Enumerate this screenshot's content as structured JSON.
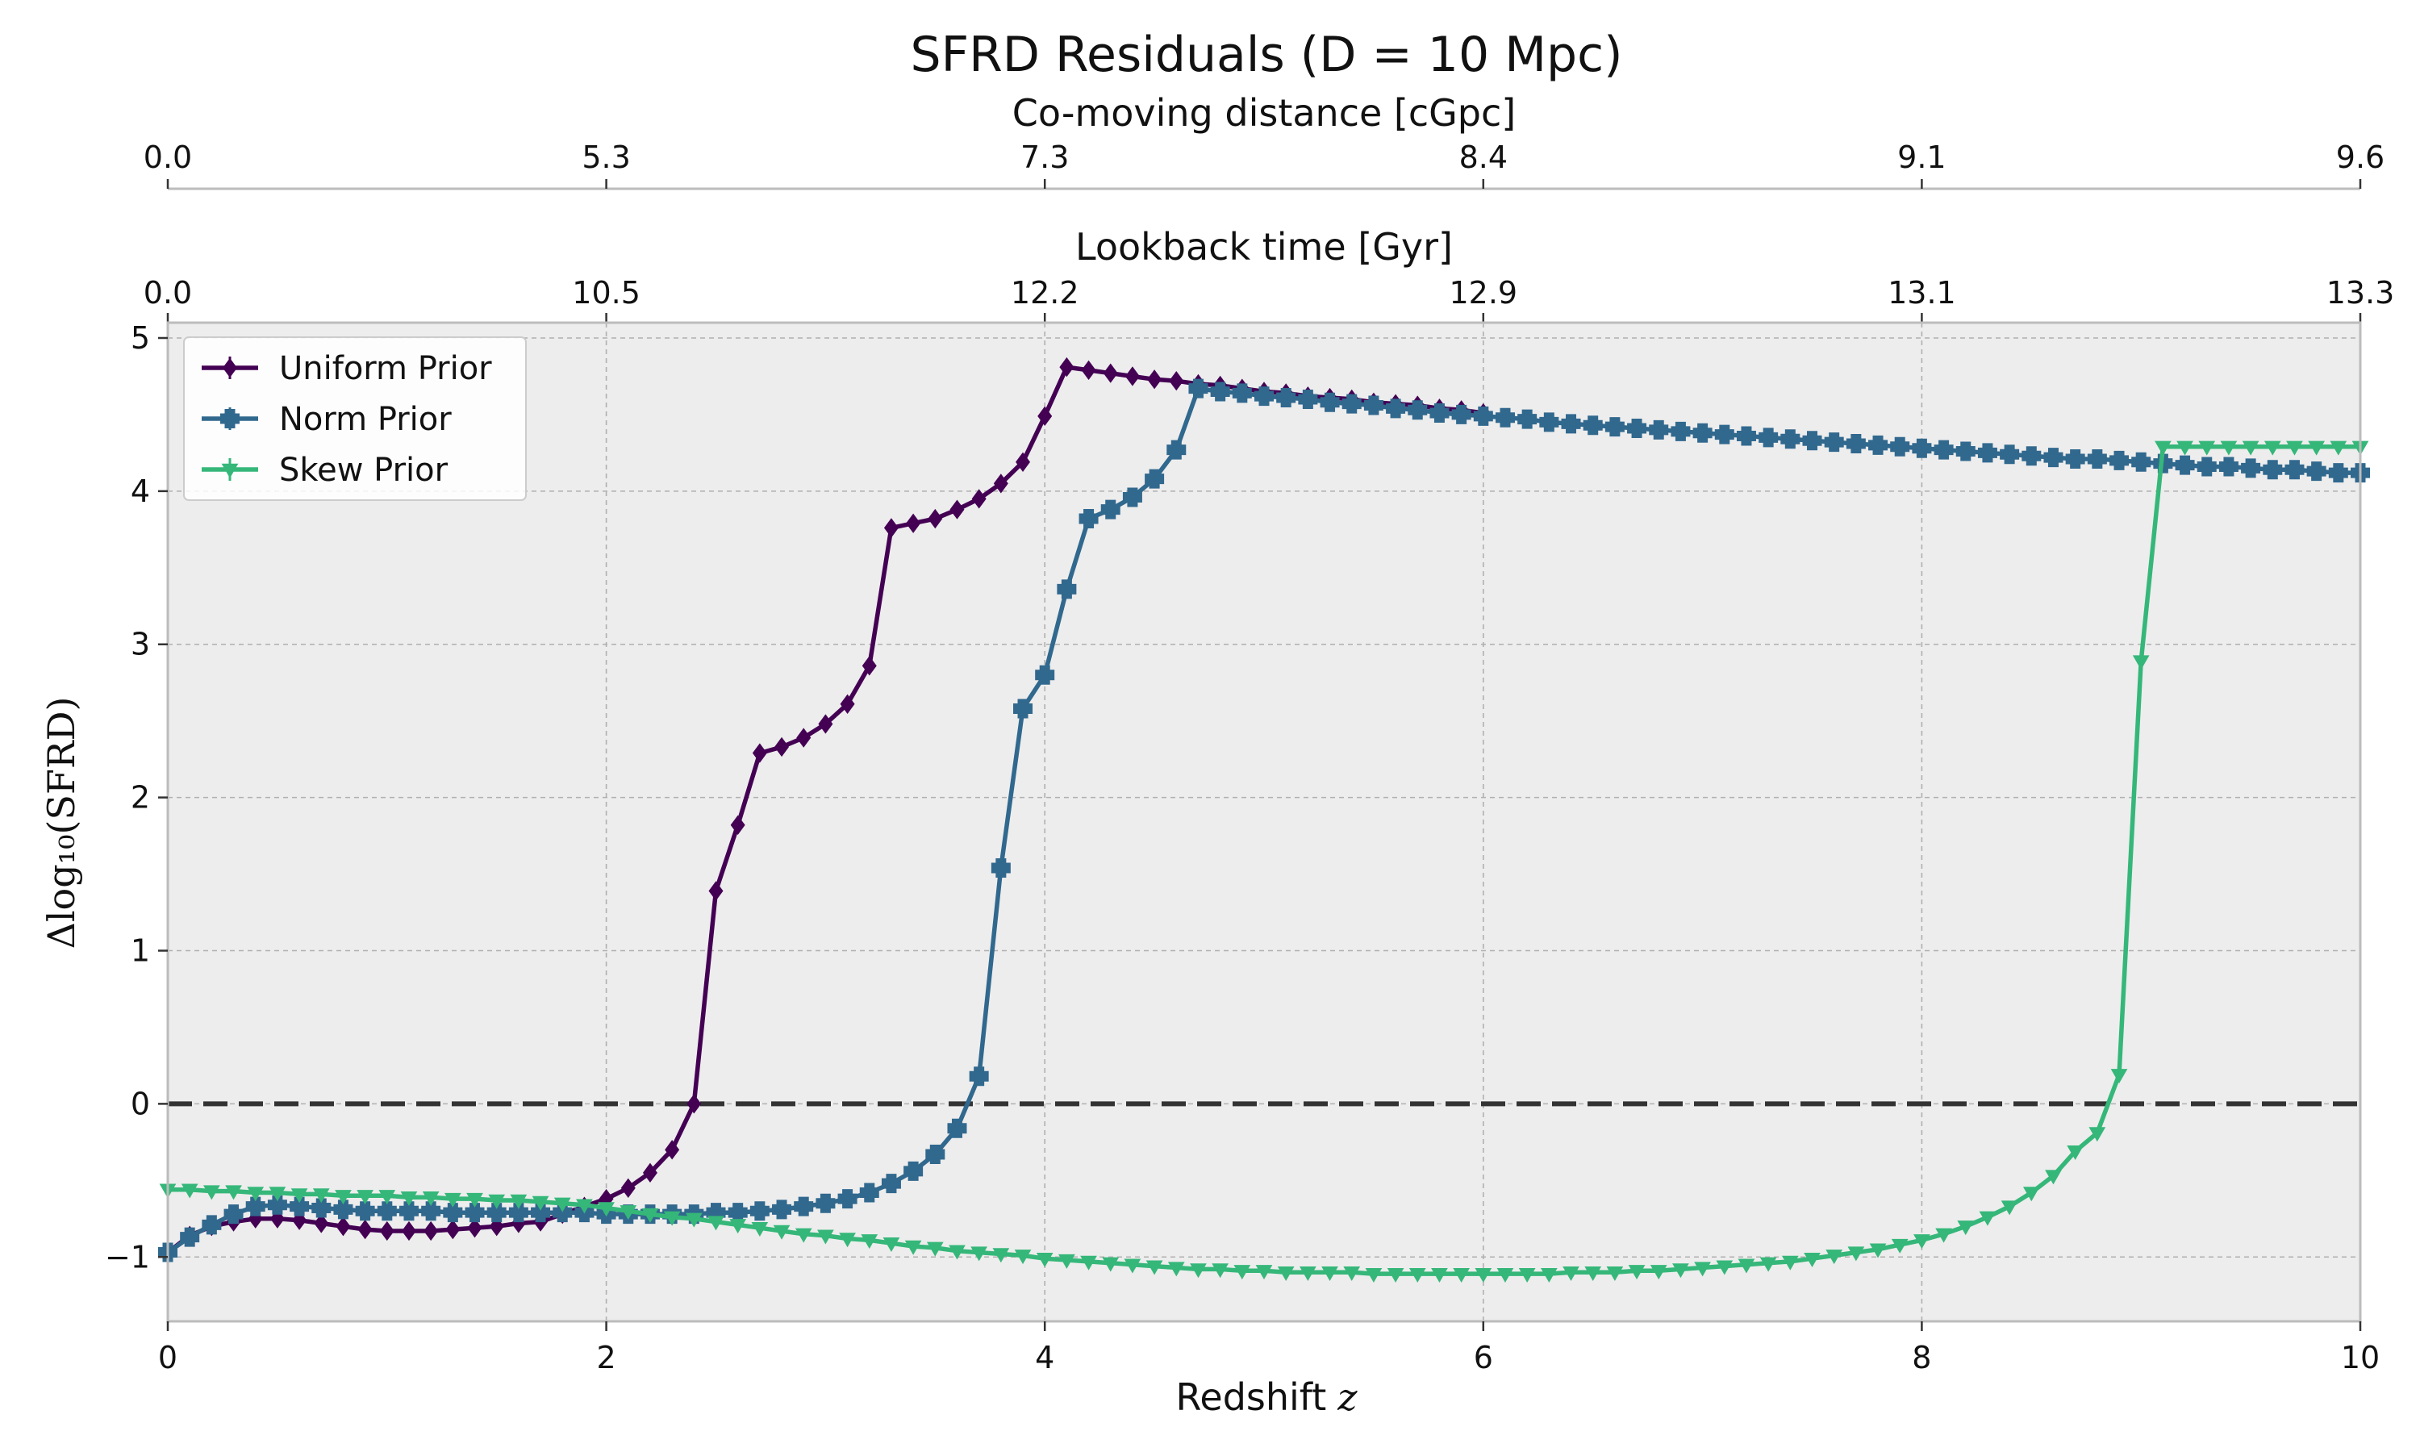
{
  "chart_data": {
    "type": "line",
    "title": "SFRD Residuals (D = 10 Mpc)",
    "xlabel": "Redshift",
    "xlabel_symbol": "z",
    "ylabel": "Δlog₁₀(SFRD)",
    "xlim": [
      0,
      10
    ],
    "ylim": [
      -1.42,
      5.1
    ],
    "x_ticks": [
      0,
      2,
      4,
      6,
      8,
      10
    ],
    "y_ticks": [
      -1,
      0,
      1,
      2,
      3,
      4,
      5
    ],
    "x_tick_labels": [
      "0",
      "2",
      "4",
      "6",
      "8",
      "10"
    ],
    "y_tick_labels": [
      "−1",
      "0",
      "1",
      "2",
      "3",
      "4",
      "5"
    ],
    "grid": true,
    "legend_position": "top-left",
    "reference_line": {
      "y": 0,
      "style": "dashed",
      "color": "#333333"
    },
    "top_axes": [
      {
        "label": "Lookback time [Gyr]",
        "ticks": [
          0,
          2,
          4,
          6,
          8,
          10
        ],
        "tick_labels": [
          "0.0",
          "10.5",
          "12.2",
          "12.9",
          "13.1",
          "13.3"
        ]
      },
      {
        "label": "Co-moving distance [cGpc]",
        "ticks": [
          0,
          2,
          4,
          6,
          8,
          10
        ],
        "tick_labels": [
          "0.0",
          "5.3",
          "7.3",
          "8.4",
          "9.1",
          "9.6"
        ]
      }
    ],
    "series": [
      {
        "name": "Uniform Prior",
        "color": "#440154",
        "marker": "diamond",
        "x": [
          0.0,
          0.1,
          0.2,
          0.3,
          0.4,
          0.5,
          0.6,
          0.7,
          0.8,
          0.9,
          1.0,
          1.1,
          1.2,
          1.3,
          1.4,
          1.5,
          1.6,
          1.7,
          1.8,
          1.9,
          2.0,
          2.1,
          2.2,
          2.3,
          2.4,
          2.5,
          2.6,
          2.7,
          2.8,
          2.9,
          3.0,
          3.1,
          3.2,
          3.3,
          3.4,
          3.5,
          3.6,
          3.7,
          3.8,
          3.9,
          4.0,
          4.1,
          4.2,
          4.3,
          4.4,
          4.5,
          4.6,
          4.7,
          4.8,
          4.9,
          5.0,
          5.1,
          5.2,
          5.3,
          5.4,
          5.5,
          5.6,
          5.7,
          5.8,
          5.9,
          6.0
        ],
        "values": [
          -0.97,
          -0.86,
          -0.8,
          -0.77,
          -0.75,
          -0.75,
          -0.76,
          -0.78,
          -0.8,
          -0.82,
          -0.83,
          -0.83,
          -0.83,
          -0.82,
          -0.81,
          -0.8,
          -0.78,
          -0.77,
          -0.72,
          -0.67,
          -0.62,
          -0.55,
          -0.45,
          -0.3,
          0.0,
          1.39,
          1.82,
          2.29,
          2.33,
          2.39,
          2.48,
          2.61,
          2.86,
          3.76,
          3.79,
          3.82,
          3.88,
          3.95,
          4.05,
          4.19,
          4.49,
          4.81,
          4.79,
          4.77,
          4.75,
          4.73,
          4.72,
          4.7,
          4.69,
          4.67,
          4.65,
          4.64,
          4.62,
          4.61,
          4.6,
          4.58,
          4.57,
          4.56,
          4.54,
          4.53,
          4.51
        ]
      },
      {
        "name": "Norm Prior",
        "color": "#31688e",
        "marker": "plus",
        "x": [
          0.0,
          0.1,
          0.2,
          0.3,
          0.4,
          0.5,
          0.6,
          0.7,
          0.8,
          0.9,
          1.0,
          1.1,
          1.2,
          1.3,
          1.4,
          1.5,
          1.6,
          1.7,
          1.8,
          1.9,
          2.0,
          2.1,
          2.2,
          2.3,
          2.4,
          2.5,
          2.6,
          2.7,
          2.8,
          2.9,
          3.0,
          3.1,
          3.2,
          3.3,
          3.4,
          3.5,
          3.6,
          3.7,
          3.8,
          3.9,
          4.0,
          4.1,
          4.2,
          4.3,
          4.4,
          4.5,
          4.6,
          4.7,
          4.8,
          4.9,
          5.0,
          5.1,
          5.2,
          5.3,
          5.4,
          5.5,
          5.6,
          5.7,
          5.8,
          5.9,
          6.0,
          6.1,
          6.2,
          6.3,
          6.4,
          6.5,
          6.6,
          6.7,
          6.8,
          6.9,
          7.0,
          7.1,
          7.2,
          7.3,
          7.4,
          7.5,
          7.6,
          7.7,
          7.8,
          7.9,
          8.0,
          8.1,
          8.2,
          8.3,
          8.4,
          8.5,
          8.6,
          8.7,
          8.8,
          8.9,
          9.0,
          9.1,
          9.2,
          9.3,
          9.4,
          9.5,
          9.6,
          9.7,
          9.8,
          9.9,
          10.0
        ],
        "values": [
          -0.97,
          -0.87,
          -0.79,
          -0.72,
          -0.67,
          -0.66,
          -0.67,
          -0.68,
          -0.69,
          -0.7,
          -0.7,
          -0.7,
          -0.7,
          -0.71,
          -0.71,
          -0.71,
          -0.71,
          -0.71,
          -0.71,
          -0.71,
          -0.72,
          -0.72,
          -0.72,
          -0.72,
          -0.72,
          -0.71,
          -0.71,
          -0.7,
          -0.69,
          -0.67,
          -0.65,
          -0.62,
          -0.58,
          -0.52,
          -0.44,
          -0.33,
          -0.16,
          0.18,
          1.54,
          2.58,
          2.8,
          3.36,
          3.82,
          3.88,
          3.96,
          4.08,
          4.27,
          4.67,
          4.65,
          4.64,
          4.62,
          4.61,
          4.6,
          4.58,
          4.57,
          4.56,
          4.54,
          4.53,
          4.51,
          4.5,
          4.49,
          4.48,
          4.47,
          4.45,
          4.44,
          4.43,
          4.42,
          4.41,
          4.4,
          4.39,
          4.38,
          4.37,
          4.36,
          4.35,
          4.34,
          4.33,
          4.32,
          4.31,
          4.3,
          4.29,
          4.28,
          4.27,
          4.26,
          4.25,
          4.24,
          4.23,
          4.22,
          4.21,
          4.21,
          4.2,
          4.19,
          4.18,
          4.17,
          4.16,
          4.16,
          4.15,
          4.14,
          4.14,
          4.13,
          4.12,
          4.12
        ]
      },
      {
        "name": "Skew Prior",
        "color": "#35b779",
        "marker": "triangle-down",
        "x": [
          0.0,
          0.1,
          0.2,
          0.3,
          0.4,
          0.5,
          0.6,
          0.7,
          0.8,
          0.9,
          1.0,
          1.1,
          1.2,
          1.3,
          1.4,
          1.5,
          1.6,
          1.7,
          1.8,
          1.9,
          2.0,
          2.1,
          2.2,
          2.3,
          2.4,
          2.5,
          2.6,
          2.7,
          2.8,
          2.9,
          3.0,
          3.1,
          3.2,
          3.3,
          3.4,
          3.5,
          3.6,
          3.7,
          3.8,
          3.9,
          4.0,
          4.1,
          4.2,
          4.3,
          4.4,
          4.5,
          4.6,
          4.7,
          4.8,
          4.9,
          5.0,
          5.1,
          5.2,
          5.3,
          5.4,
          5.5,
          5.6,
          5.7,
          5.8,
          5.9,
          6.0,
          6.1,
          6.2,
          6.3,
          6.4,
          6.5,
          6.6,
          6.7,
          6.8,
          6.9,
          7.0,
          7.1,
          7.2,
          7.3,
          7.4,
          7.5,
          7.6,
          7.7,
          7.8,
          7.9,
          8.0,
          8.1,
          8.2,
          8.3,
          8.4,
          8.5,
          8.6,
          8.7,
          8.8,
          8.9,
          9.0,
          9.1,
          9.2,
          9.3,
          9.4,
          9.5,
          9.6,
          9.7,
          9.8,
          9.9,
          10.0
        ],
        "values": [
          -0.56,
          -0.56,
          -0.57,
          -0.57,
          -0.58,
          -0.58,
          -0.59,
          -0.59,
          -0.6,
          -0.6,
          -0.6,
          -0.61,
          -0.61,
          -0.62,
          -0.62,
          -0.63,
          -0.63,
          -0.64,
          -0.65,
          -0.66,
          -0.68,
          -0.7,
          -0.72,
          -0.74,
          -0.75,
          -0.77,
          -0.79,
          -0.81,
          -0.83,
          -0.85,
          -0.86,
          -0.88,
          -0.89,
          -0.91,
          -0.93,
          -0.94,
          -0.96,
          -0.97,
          -0.98,
          -0.99,
          -1.01,
          -1.02,
          -1.03,
          -1.04,
          -1.05,
          -1.06,
          -1.07,
          -1.08,
          -1.08,
          -1.09,
          -1.09,
          -1.1,
          -1.1,
          -1.1,
          -1.1,
          -1.11,
          -1.11,
          -1.11,
          -1.11,
          -1.11,
          -1.11,
          -1.11,
          -1.11,
          -1.11,
          -1.1,
          -1.1,
          -1.1,
          -1.09,
          -1.09,
          -1.08,
          -1.07,
          -1.06,
          -1.05,
          -1.04,
          -1.03,
          -1.01,
          -0.99,
          -0.97,
          -0.95,
          -0.92,
          -0.89,
          -0.85,
          -0.8,
          -0.74,
          -0.67,
          -0.58,
          -0.47,
          -0.31,
          -0.19,
          0.19,
          2.89,
          4.29,
          4.29,
          4.29,
          4.29,
          4.29,
          4.29,
          4.29,
          4.29,
          4.29,
          4.29
        ]
      }
    ]
  }
}
